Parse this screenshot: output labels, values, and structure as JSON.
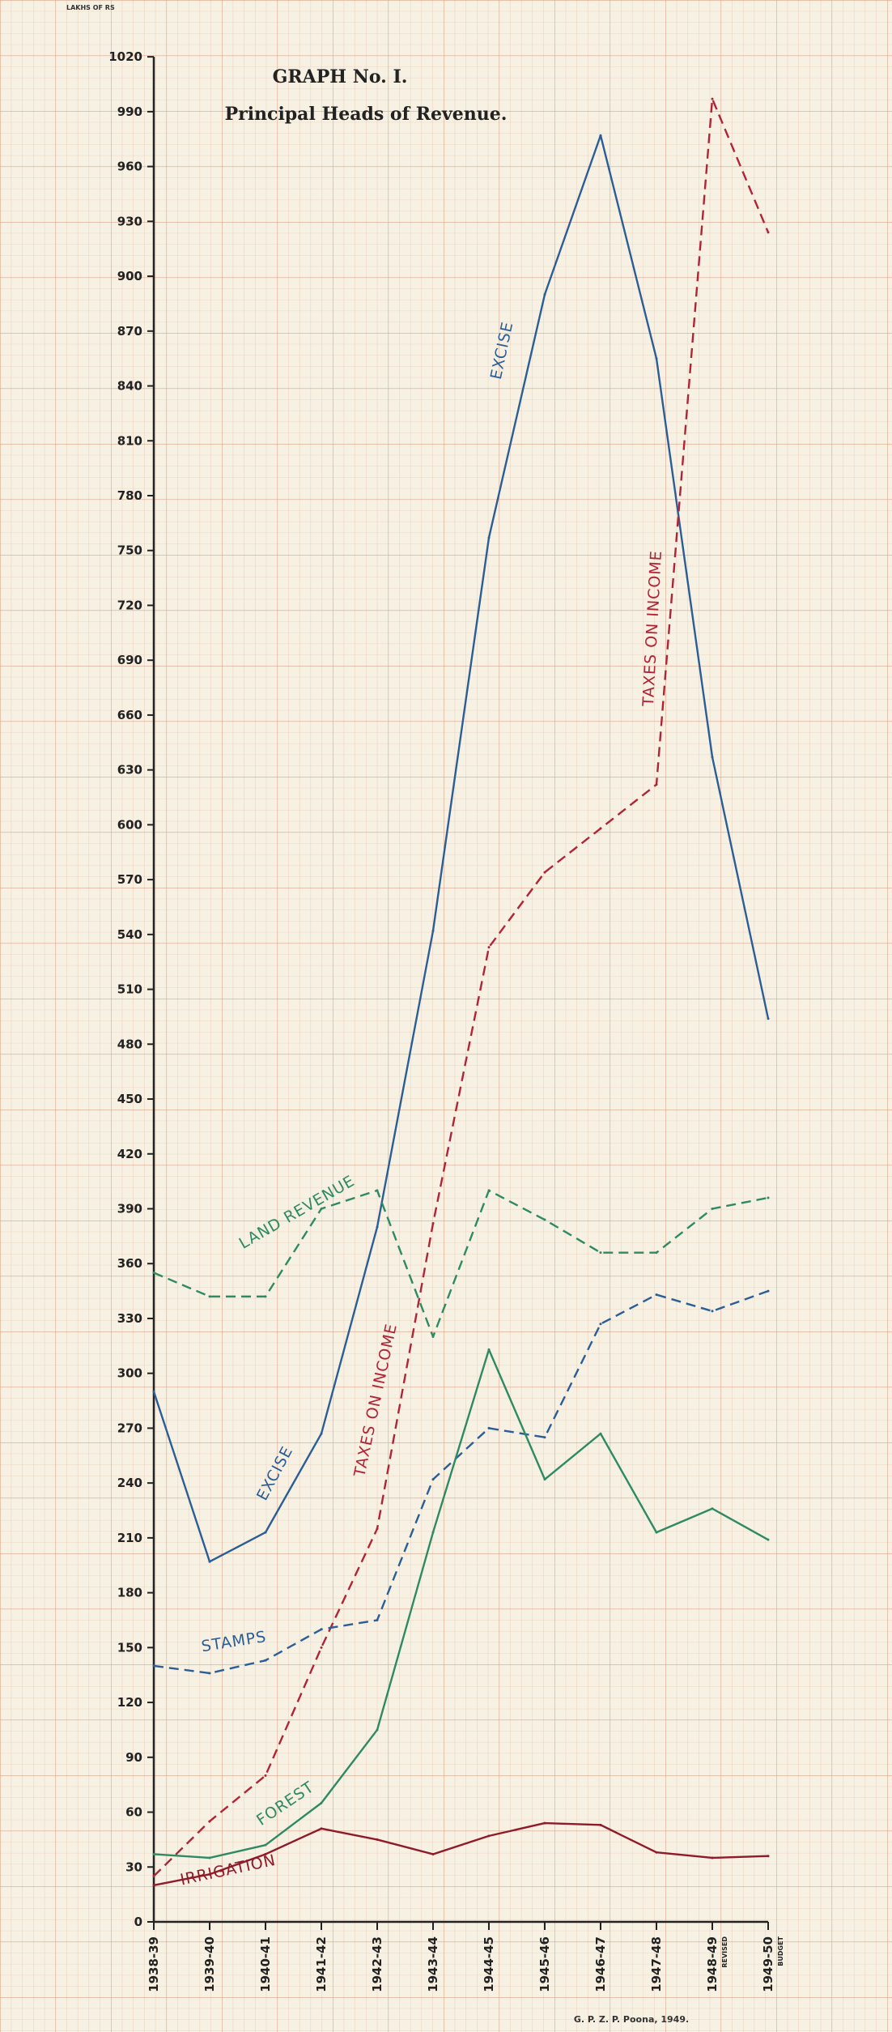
{
  "chart_data": {
    "type": "line",
    "title": "GRAPH No. I.",
    "subtitle": "Principal Heads of Revenue.",
    "ylabel": "LAKHS OF RS",
    "ylim": [
      0,
      1020
    ],
    "yticks": [
      0,
      30,
      60,
      90,
      120,
      150,
      180,
      210,
      240,
      270,
      300,
      330,
      360,
      390,
      420,
      450,
      480,
      510,
      540,
      570,
      600,
      630,
      660,
      690,
      720,
      750,
      780,
      810,
      840,
      870,
      900,
      930,
      960,
      990,
      1020
    ],
    "categories": [
      "1938-39",
      "1939-40",
      "1940-41",
      "1941-42",
      "1942-43",
      "1943-44",
      "1944-45",
      "1945-46",
      "1946-47",
      "1947-48",
      "1948-49",
      "1949-50"
    ],
    "category_sublabels": [
      "",
      "",
      "",
      "",
      "",
      "",
      "",
      "",
      "",
      "",
      "REVISED",
      "BUDGET"
    ],
    "grid": true,
    "series": [
      {
        "name": "EXCISE",
        "color": "#2b5d97",
        "dash": false,
        "values": [
          290,
          197,
          213,
          267,
          380,
          542,
          757,
          890,
          977,
          855,
          637,
          494
        ]
      },
      {
        "name": "TAXES ON INCOME",
        "color": "#b02437",
        "dash": true,
        "values": [
          25,
          55,
          80,
          150,
          215,
          382,
          533,
          574,
          598,
          622,
          997,
          924
        ]
      },
      {
        "name": "LAND REVENUE",
        "color": "#2e8a63",
        "dash": true,
        "values": [
          355,
          342,
          342,
          390,
          400,
          320,
          400,
          384,
          366,
          366,
          390,
          396
        ]
      },
      {
        "name": "STAMPS",
        "color": "#2b5d97",
        "dash": true,
        "values": [
          140,
          136,
          143,
          160,
          165,
          242,
          270,
          265,
          327,
          343,
          334,
          345
        ]
      },
      {
        "name": "FOREST",
        "color": "#2e8a63",
        "dash": false,
        "values": [
          37,
          35,
          42,
          65,
          105,
          213,
          313,
          242,
          267,
          213,
          226,
          209
        ]
      },
      {
        "name": "IRRIGATION",
        "color": "#8e1a2a",
        "dash": false,
        "values": [
          20,
          26,
          37,
          51,
          45,
          37,
          47,
          54,
          53,
          38,
          35,
          36
        ]
      }
    ]
  },
  "credit": "G. P. Z. P. Poona, 1949."
}
